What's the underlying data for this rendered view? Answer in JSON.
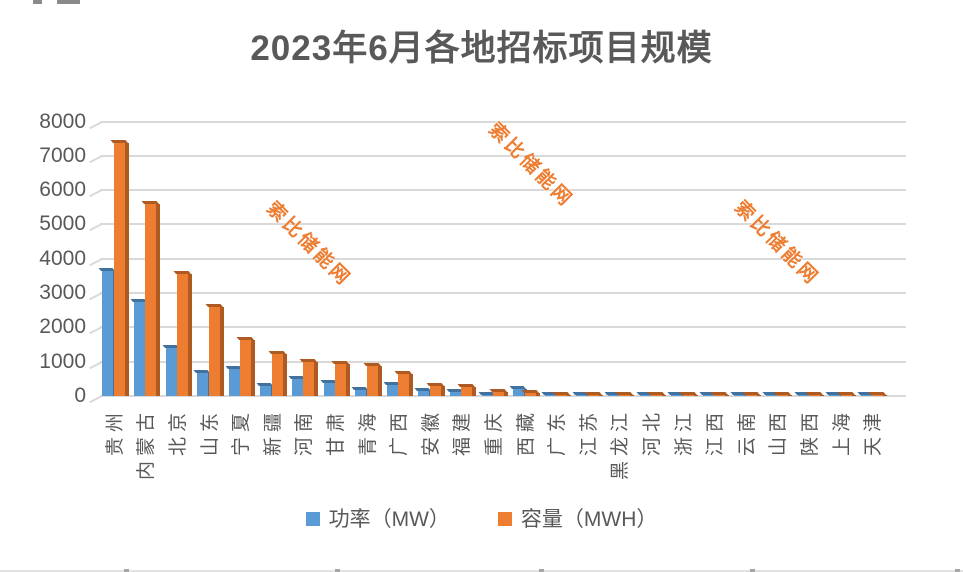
{
  "title": "2023年6月各地招标项目规模",
  "watermark": {
    "text": "索比储能网"
  },
  "legend": [
    {
      "label": "功率（MW）",
      "color": "#5B9BD5"
    },
    {
      "label": "容量（MWH）",
      "color": "#ED7D31"
    }
  ],
  "chart_data": {
    "type": "bar",
    "style": "3d-clustered-column",
    "title": "2023年6月各地招标项目规模",
    "categories": [
      "贵州",
      "内蒙古",
      "北京",
      "山东",
      "宁夏",
      "新疆",
      "河南",
      "甘肃",
      "青海",
      "广西",
      "安徽",
      "福建",
      "重庆",
      "西藏",
      "广东",
      "江苏",
      "黑龙江",
      "河北",
      "浙江",
      "江西",
      "云南",
      "山西",
      "陕西",
      "上海",
      "天津"
    ],
    "series": [
      {
        "name": "功率（MW）",
        "color": "#5B9BD5",
        "side_color": "#41719C",
        "values": [
          3640,
          2750,
          1390,
          680,
          780,
          300,
          490,
          370,
          180,
          310,
          140,
          110,
          30,
          200,
          30,
          30,
          30,
          25,
          25,
          25,
          20,
          20,
          20,
          15,
          15
        ]
      },
      {
        "name": "容量（MWH）",
        "color": "#ED7D31",
        "side_color": "#AE5A21",
        "values": [
          7380,
          5600,
          3550,
          2600,
          1630,
          1220,
          1000,
          930,
          880,
          650,
          280,
          260,
          130,
          100,
          40,
          40,
          40,
          35,
          35,
          35,
          30,
          30,
          30,
          25,
          25
        ]
      }
    ],
    "xlabel": "",
    "ylabel": "",
    "ylim": [
      0,
      8000
    ],
    "yticks": [
      0,
      1000,
      2000,
      3000,
      4000,
      5000,
      6000,
      7000,
      8000
    ],
    "grid": true,
    "grid_color": "#D9D9D9",
    "text_color": "#595959",
    "legend_position": "bottom",
    "x_label_rotation_deg": 90
  }
}
